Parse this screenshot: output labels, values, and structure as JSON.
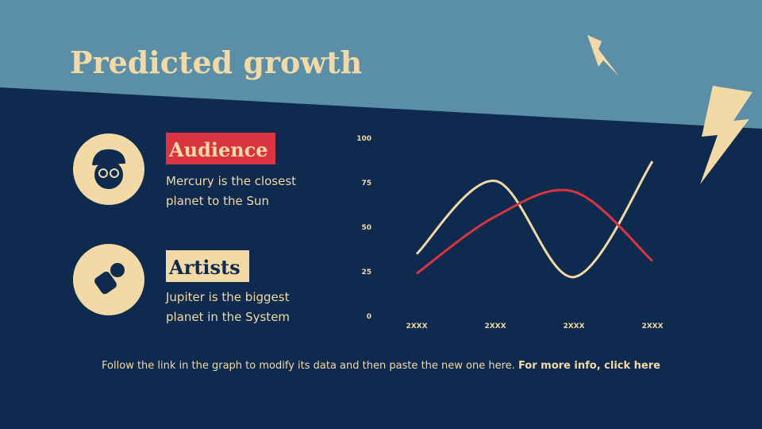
{
  "header": {
    "title": "Predicted growth"
  },
  "items": [
    {
      "label": "Audience",
      "desc": [
        "Mercury is the closest",
        "planet to the Sun"
      ]
    },
    {
      "label": "Artists",
      "desc": [
        "Jupiter is the biggest",
        "planet in the System"
      ]
    }
  ],
  "chart_data": {
    "type": "line",
    "categories": [
      "2XXX",
      "2XXX",
      "2XXX",
      "2XXX"
    ],
    "series": [
      {
        "color": "#f2d9a6",
        "values": [
          35,
          76,
          22,
          87
        ]
      },
      {
        "color": "#d9343f",
        "values": [
          24,
          56,
          70,
          31
        ]
      }
    ],
    "ylim": [
      0,
      100
    ],
    "yticks": [
      0,
      25,
      50,
      75,
      100
    ],
    "grid": false
  },
  "footer": {
    "text": "Follow the link in the graph to modify its data and then paste the new one here.",
    "link": "For more info, click here"
  }
}
